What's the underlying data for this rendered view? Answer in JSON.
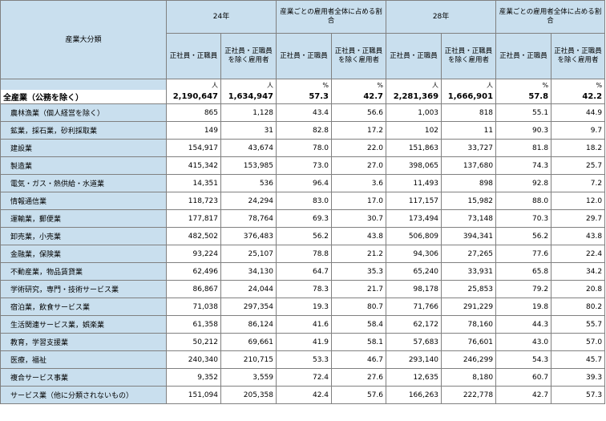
{
  "header": {
    "corner_label": "産業大分類",
    "group_24": "24年",
    "group_28": "28年",
    "share_group_24": "産業ごとの雇用者全体に占める割合",
    "share_group_28": "産業ごとの雇用者全体に占める割合",
    "col_regular": "正社員・正職員",
    "col_nonregular": "正社員・正職員を除く雇用者"
  },
  "units": [
    "人",
    "人",
    "%",
    "%",
    "人",
    "人",
    "%",
    "%"
  ],
  "total": {
    "label": "全産業（公務を除く）",
    "values": [
      "2,190,647",
      "1,634,947",
      "57.3",
      "42.7",
      "2,281,369",
      "1,666,901",
      "57.8",
      "42.2"
    ]
  },
  "rows": [
    {
      "label": "農林漁業（個人経営を除く）",
      "values": [
        "865",
        "1,128",
        "43.4",
        "56.6",
        "1,003",
        "818",
        "55.1",
        "44.9"
      ]
    },
    {
      "label": "鉱業，採石業，砂利採取業",
      "values": [
        "149",
        "31",
        "82.8",
        "17.2",
        "102",
        "11",
        "90.3",
        "9.7"
      ]
    },
    {
      "label": "建設業",
      "values": [
        "154,917",
        "43,674",
        "78.0",
        "22.0",
        "151,863",
        "33,727",
        "81.8",
        "18.2"
      ]
    },
    {
      "label": "製造業",
      "values": [
        "415,342",
        "153,985",
        "73.0",
        "27.0",
        "398,065",
        "137,680",
        "74.3",
        "25.7"
      ]
    },
    {
      "label": "電気・ガス・熱供給・水道業",
      "values": [
        "14,351",
        "536",
        "96.4",
        "3.6",
        "11,493",
        "898",
        "92.8",
        "7.2"
      ]
    },
    {
      "label": "情報通信業",
      "values": [
        "118,723",
        "24,294",
        "83.0",
        "17.0",
        "117,157",
        "15,982",
        "88.0",
        "12.0"
      ]
    },
    {
      "label": "運輸業，郵便業",
      "values": [
        "177,817",
        "78,764",
        "69.3",
        "30.7",
        "173,494",
        "73,148",
        "70.3",
        "29.7"
      ]
    },
    {
      "label": "卸売業，小売業",
      "values": [
        "482,502",
        "376,483",
        "56.2",
        "43.8",
        "506,809",
        "394,341",
        "56.2",
        "43.8"
      ]
    },
    {
      "label": "金融業，保険業",
      "values": [
        "93,224",
        "25,107",
        "78.8",
        "21.2",
        "94,306",
        "27,265",
        "77.6",
        "22.4"
      ]
    },
    {
      "label": "不動産業，物品賃貸業",
      "values": [
        "62,496",
        "34,130",
        "64.7",
        "35.3",
        "65,240",
        "33,931",
        "65.8",
        "34.2"
      ]
    },
    {
      "label": "学術研究，専門・技術サービス業",
      "values": [
        "86,867",
        "24,044",
        "78.3",
        "21.7",
        "98,178",
        "25,853",
        "79.2",
        "20.8"
      ]
    },
    {
      "label": "宿泊業，飲食サービス業",
      "values": [
        "71,038",
        "297,354",
        "19.3",
        "80.7",
        "71,766",
        "291,229",
        "19.8",
        "80.2"
      ]
    },
    {
      "label": "生活関連サービス業，娯楽業",
      "values": [
        "61,358",
        "86,124",
        "41.6",
        "58.4",
        "62,172",
        "78,160",
        "44.3",
        "55.7"
      ]
    },
    {
      "label": "教育，学習支援業",
      "values": [
        "50,212",
        "69,661",
        "41.9",
        "58.1",
        "57,683",
        "76,601",
        "43.0",
        "57.0"
      ]
    },
    {
      "label": "医療，福祉",
      "values": [
        "240,340",
        "210,715",
        "53.3",
        "46.7",
        "293,140",
        "246,299",
        "54.3",
        "45.7"
      ]
    },
    {
      "label": "複合サービス事業",
      "values": [
        "9,352",
        "3,559",
        "72.4",
        "27.6",
        "12,635",
        "8,180",
        "60.7",
        "39.3"
      ]
    },
    {
      "label": "サービス業（他に分類されないもの）",
      "values": [
        "151,094",
        "205,358",
        "42.4",
        "57.6",
        "166,263",
        "222,778",
        "42.7",
        "57.3"
      ]
    }
  ]
}
